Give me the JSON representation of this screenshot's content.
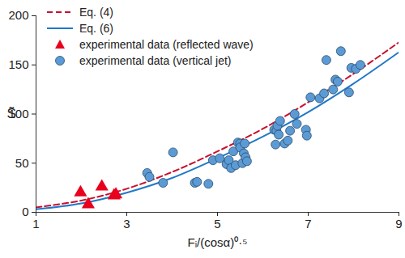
{
  "chart_data": {
    "type": "scatter",
    "x_label": "Fᵢ/(cosα)⁰·⁵",
    "y_label": "S̃",
    "xlim": [
      1,
      9
    ],
    "xticks": [
      1,
      3,
      5,
      7,
      9
    ],
    "ylim": [
      0,
      200
    ],
    "yticks": [
      0,
      50,
      100,
      150,
      200
    ],
    "grid": false,
    "legend": "top-left",
    "series": [
      {
        "name": "Eq. (4)",
        "type": "line",
        "line_style": "dashed",
        "color": "#c8102e",
        "x": [
          1,
          2,
          3,
          4,
          5,
          6,
          7,
          8,
          9
        ],
        "values": [
          5,
          12,
          24,
          41,
          62,
          85,
          112,
          141,
          173
        ]
      },
      {
        "name": "Eq. (6)",
        "type": "line",
        "line_style": "solid",
        "color": "#1f78c8",
        "x": [
          1,
          2,
          3,
          4,
          5,
          6,
          7,
          8,
          9
        ],
        "values": [
          3,
          9,
          20,
          35,
          55,
          77,
          102,
          131,
          163
        ]
      },
      {
        "name": "experimental data (reflected wave)",
        "type": "scatter",
        "marker": "triangle",
        "color": "#e8001c",
        "x": [
          1.98,
          2.15,
          2.45,
          2.72,
          2.76
        ],
        "values": [
          20,
          8,
          26,
          17,
          18
        ]
      },
      {
        "name": "experimental data (vertical jet)",
        "type": "scatter",
        "marker": "circle",
        "color": "#5b9bd5",
        "x": [
          3.45,
          3.5,
          3.8,
          4.02,
          4.5,
          4.55,
          4.8,
          4.9,
          5.05,
          5.2,
          5.25,
          5.3,
          5.35,
          5.4,
          5.45,
          5.5,
          5.5,
          5.55,
          5.58,
          5.6,
          5.62,
          5.65,
          6.25,
          6.28,
          6.3,
          6.32,
          6.35,
          6.38,
          6.48,
          6.55,
          6.6,
          6.7,
          6.75,
          6.95,
          6.97,
          7.05,
          7.25,
          7.35,
          7.4,
          7.55,
          7.6,
          7.65,
          7.72,
          7.9,
          7.95,
          8.05,
          8.15
        ],
        "values": [
          40,
          36,
          30,
          61,
          30,
          31,
          29,
          53,
          55,
          49,
          53,
          45,
          62,
          48,
          71,
          70,
          66,
          50,
          60,
          70,
          56,
          52,
          84,
          69,
          83,
          88,
          79,
          93,
          70,
          73,
          83,
          100,
          90,
          84,
          78,
          117,
          116,
          121,
          155,
          125,
          135,
          133,
          164,
          122,
          147,
          146,
          150
        ]
      }
    ]
  }
}
